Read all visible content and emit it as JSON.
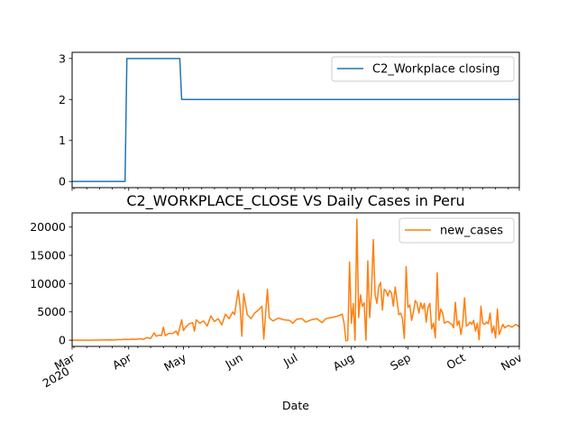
{
  "chart_data": [
    {
      "type": "line",
      "title": "",
      "xlabel": "",
      "ylabel": "",
      "ylim": [
        -0.15,
        3.15
      ],
      "yticks": [
        0,
        1,
        2,
        3
      ],
      "legend": {
        "placement": "top-right"
      },
      "grid": false,
      "series": [
        {
          "name": "C2_Workplace closing",
          "color": "#1f77b4",
          "step_points": [
            [
              "2020-03-01",
              0
            ],
            [
              "2020-03-30",
              0
            ],
            [
              "2020-03-31",
              3
            ],
            [
              "2020-04-29",
              3
            ],
            [
              "2020-04-30",
              2
            ],
            [
              "2020-11-01",
              2
            ]
          ]
        }
      ]
    },
    {
      "type": "line",
      "title": "C2_WORKPLACE_CLOSE VS Daily Cases in Peru",
      "xlabel": "Date",
      "ylabel": "",
      "ylim": [
        -1100,
        22500
      ],
      "yticks": [
        0,
        5000,
        10000,
        15000,
        20000
      ],
      "ytick_labels": [
        "0",
        "5000",
        "10000",
        "15000",
        "20000"
      ],
      "xlim": [
        "2020-03-01",
        "2020-11-01"
      ],
      "xticks": [
        {
          "date": "2020-03-01",
          "label": "Mar",
          "label2": "2020"
        },
        {
          "date": "2020-04-01",
          "label": "Apr"
        },
        {
          "date": "2020-05-01",
          "label": "May"
        },
        {
          "date": "2020-06-01",
          "label": "Jun"
        },
        {
          "date": "2020-07-01",
          "label": "Jul"
        },
        {
          "date": "2020-08-01",
          "label": "Aug"
        },
        {
          "date": "2020-09-01",
          "label": "Sep"
        },
        {
          "date": "2020-10-01",
          "label": "Oct"
        },
        {
          "date": "2020-11-01",
          "label": "Nov"
        }
      ],
      "legend": {
        "placement": "top-right"
      },
      "grid": false,
      "series": [
        {
          "name": "new_cases",
          "color": "#ff7f0e",
          "points": [
            [
              "2020-03-01",
              0
            ],
            [
              "2020-03-06",
              0
            ],
            [
              "2020-03-10",
              5
            ],
            [
              "2020-03-14",
              15
            ],
            [
              "2020-03-18",
              30
            ],
            [
              "2020-03-22",
              60
            ],
            [
              "2020-03-24",
              40
            ],
            [
              "2020-03-26",
              90
            ],
            [
              "2020-03-28",
              100
            ],
            [
              "2020-03-30",
              150
            ],
            [
              "2020-04-01",
              120
            ],
            [
              "2020-04-03",
              180
            ],
            [
              "2020-04-05",
              150
            ],
            [
              "2020-04-07",
              250
            ],
            [
              "2020-04-09",
              150
            ],
            [
              "2020-04-11",
              450
            ],
            [
              "2020-04-13",
              300
            ],
            [
              "2020-04-15",
              1300
            ],
            [
              "2020-04-16",
              700
            ],
            [
              "2020-04-18",
              900
            ],
            [
              "2020-04-19",
              800
            ],
            [
              "2020-04-20",
              2300
            ],
            [
              "2020-04-21",
              800
            ],
            [
              "2020-04-23",
              1200
            ],
            [
              "2020-04-25",
              1200
            ],
            [
              "2020-04-27",
              1600
            ],
            [
              "2020-04-28",
              900
            ],
            [
              "2020-04-30",
              3600
            ],
            [
              "2020-05-01",
              1700
            ],
            [
              "2020-05-02",
              2200
            ],
            [
              "2020-05-04",
              2900
            ],
            [
              "2020-05-06",
              3100
            ],
            [
              "2020-05-07",
              1600
            ],
            [
              "2020-05-08",
              3600
            ],
            [
              "2020-05-10",
              3000
            ],
            [
              "2020-05-12",
              3400
            ],
            [
              "2020-05-14",
              2500
            ],
            [
              "2020-05-16",
              4300
            ],
            [
              "2020-05-18",
              3300
            ],
            [
              "2020-05-20",
              3800
            ],
            [
              "2020-05-22",
              2700
            ],
            [
              "2020-05-24",
              4600
            ],
            [
              "2020-05-26",
              3800
            ],
            [
              "2020-05-28",
              5000
            ],
            [
              "2020-05-29",
              4500
            ],
            [
              "2020-05-31",
              8800
            ],
            [
              "2020-06-01",
              6000
            ],
            [
              "2020-06-02",
              700
            ],
            [
              "2020-06-03",
              8200
            ],
            [
              "2020-06-05",
              4500
            ],
            [
              "2020-06-07",
              3800
            ],
            [
              "2020-06-09",
              4800
            ],
            [
              "2020-06-11",
              5300
            ],
            [
              "2020-06-13",
              6000
            ],
            [
              "2020-06-14",
              200
            ],
            [
              "2020-06-16",
              9000
            ],
            [
              "2020-06-17",
              4000
            ],
            [
              "2020-06-19",
              3400
            ],
            [
              "2020-06-22",
              3900
            ],
            [
              "2020-06-25",
              3600
            ],
            [
              "2020-06-28",
              3500
            ],
            [
              "2020-06-30",
              3000
            ],
            [
              "2020-07-02",
              3700
            ],
            [
              "2020-07-05",
              3800
            ],
            [
              "2020-07-07",
              3200
            ],
            [
              "2020-07-10",
              3600
            ],
            [
              "2020-07-13",
              3800
            ],
            [
              "2020-07-16",
              3100
            ],
            [
              "2020-07-18",
              3800
            ],
            [
              "2020-07-21",
              4000
            ],
            [
              "2020-07-24",
              4200
            ],
            [
              "2020-07-27",
              4600
            ],
            [
              "2020-07-28",
              3000
            ],
            [
              "2020-07-29",
              -100
            ],
            [
              "2020-07-30",
              0
            ],
            [
              "2020-07-31",
              13800
            ],
            [
              "2020-08-01",
              3000
            ],
            [
              "2020-08-02",
              6500
            ],
            [
              "2020-08-03",
              0
            ],
            [
              "2020-08-04",
              21400
            ],
            [
              "2020-08-05",
              4000
            ],
            [
              "2020-08-06",
              8000
            ],
            [
              "2020-08-07",
              6000
            ],
            [
              "2020-08-08",
              6600
            ],
            [
              "2020-08-09",
              0
            ],
            [
              "2020-08-10",
              14000
            ],
            [
              "2020-08-11",
              4000
            ],
            [
              "2020-08-12",
              8500
            ],
            [
              "2020-08-13",
              17800
            ],
            [
              "2020-08-14",
              8000
            ],
            [
              "2020-08-15",
              6500
            ],
            [
              "2020-08-16",
              9500
            ],
            [
              "2020-08-17",
              10200
            ],
            [
              "2020-08-18",
              5300
            ],
            [
              "2020-08-19",
              9000
            ],
            [
              "2020-08-20",
              8700
            ],
            [
              "2020-08-21",
              7800
            ],
            [
              "2020-08-22",
              8800
            ],
            [
              "2020-08-23",
              8300
            ],
            [
              "2020-08-24",
              6000
            ],
            [
              "2020-08-25",
              9400
            ],
            [
              "2020-08-26",
              7000
            ],
            [
              "2020-08-27",
              4500
            ],
            [
              "2020-08-28",
              4800
            ],
            [
              "2020-08-29",
              3800
            ],
            [
              "2020-08-30",
              300
            ],
            [
              "2020-08-31",
              13000
            ],
            [
              "2020-09-01",
              5800
            ],
            [
              "2020-09-02",
              6200
            ],
            [
              "2020-09-03",
              3500
            ],
            [
              "2020-09-04",
              5000
            ],
            [
              "2020-09-05",
              7000
            ],
            [
              "2020-09-06",
              6500
            ],
            [
              "2020-09-07",
              4800
            ],
            [
              "2020-09-08",
              6600
            ],
            [
              "2020-09-09",
              5500
            ],
            [
              "2020-09-10",
              6500
            ],
            [
              "2020-09-11",
              3200
            ],
            [
              "2020-09-12",
              5800
            ],
            [
              "2020-09-13",
              6500
            ],
            [
              "2020-09-14",
              2000
            ],
            [
              "2020-09-15",
              3000
            ],
            [
              "2020-09-16",
              400
            ],
            [
              "2020-09-17",
              11900
            ],
            [
              "2020-09-18",
              3500
            ],
            [
              "2020-09-19",
              5500
            ],
            [
              "2020-09-20",
              4800
            ],
            [
              "2020-09-21",
              3000
            ],
            [
              "2020-09-22",
              3200
            ],
            [
              "2020-09-23",
              3300
            ],
            [
              "2020-09-24",
              3000
            ],
            [
              "2020-09-25",
              2800
            ],
            [
              "2020-09-26",
              2200
            ],
            [
              "2020-09-27",
              6700
            ],
            [
              "2020-09-28",
              2600
            ],
            [
              "2020-09-29",
              3400
            ],
            [
              "2020-09-30",
              1000
            ],
            [
              "2020-10-01",
              3000
            ],
            [
              "2020-10-02",
              7500
            ],
            [
              "2020-10-03",
              2500
            ],
            [
              "2020-10-04",
              2700
            ],
            [
              "2020-10-05",
              3200
            ],
            [
              "2020-10-06",
              2800
            ],
            [
              "2020-10-07",
              3500
            ],
            [
              "2020-10-08",
              1600
            ],
            [
              "2020-10-09",
              3000
            ],
            [
              "2020-10-10",
              100
            ],
            [
              "2020-10-11",
              6000
            ],
            [
              "2020-10-12",
              3000
            ],
            [
              "2020-10-13",
              2800
            ],
            [
              "2020-10-14",
              3200
            ],
            [
              "2020-10-15",
              2900
            ],
            [
              "2020-10-16",
              4800
            ],
            [
              "2020-10-17",
              1300
            ],
            [
              "2020-10-18",
              2500
            ],
            [
              "2020-10-19",
              400
            ],
            [
              "2020-10-20",
              5500
            ],
            [
              "2020-10-21",
              1000
            ],
            [
              "2020-10-23",
              2800
            ],
            [
              "2020-10-24",
              2200
            ],
            [
              "2020-10-26",
              2600
            ],
            [
              "2020-10-28",
              2300
            ],
            [
              "2020-10-30",
              2800
            ],
            [
              "2020-11-01",
              2400
            ]
          ]
        }
      ]
    }
  ]
}
